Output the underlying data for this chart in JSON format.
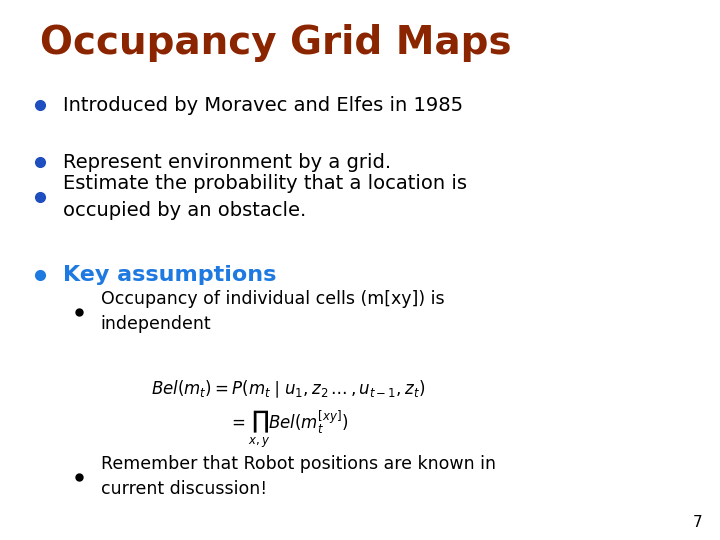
{
  "title": "Occupancy Grid Maps",
  "title_color": "#8B2500",
  "title_fontsize": 28,
  "background_color": "#FFFFFF",
  "bullet_color": "#1E4EBF",
  "text_color": "#000000",
  "cyan_color": "#1E7AE0",
  "slide_number": "7",
  "main_bullets": [
    "Introduced by Moravec and Elfes in 1985",
    "Represent environment by a grid.",
    "Estimate the probability that a location is\noccupied by an obstacle."
  ],
  "key_assumptions_label": "Key assumptions",
  "sub_bullet1": "Occupancy of individual cells (m[xy]) is\nindependent",
  "formula_line1": "$Bel(m_t) = P(m_t \\mid u_1, z_2\\,\\ldots\\,,u_{t-1},z_t)$",
  "formula_line2": "$= \\prod_{x,y} Bel(m_t^{[xy]})$",
  "last_bullet": "Remember that Robot positions are known in\ncurrent discussion!"
}
